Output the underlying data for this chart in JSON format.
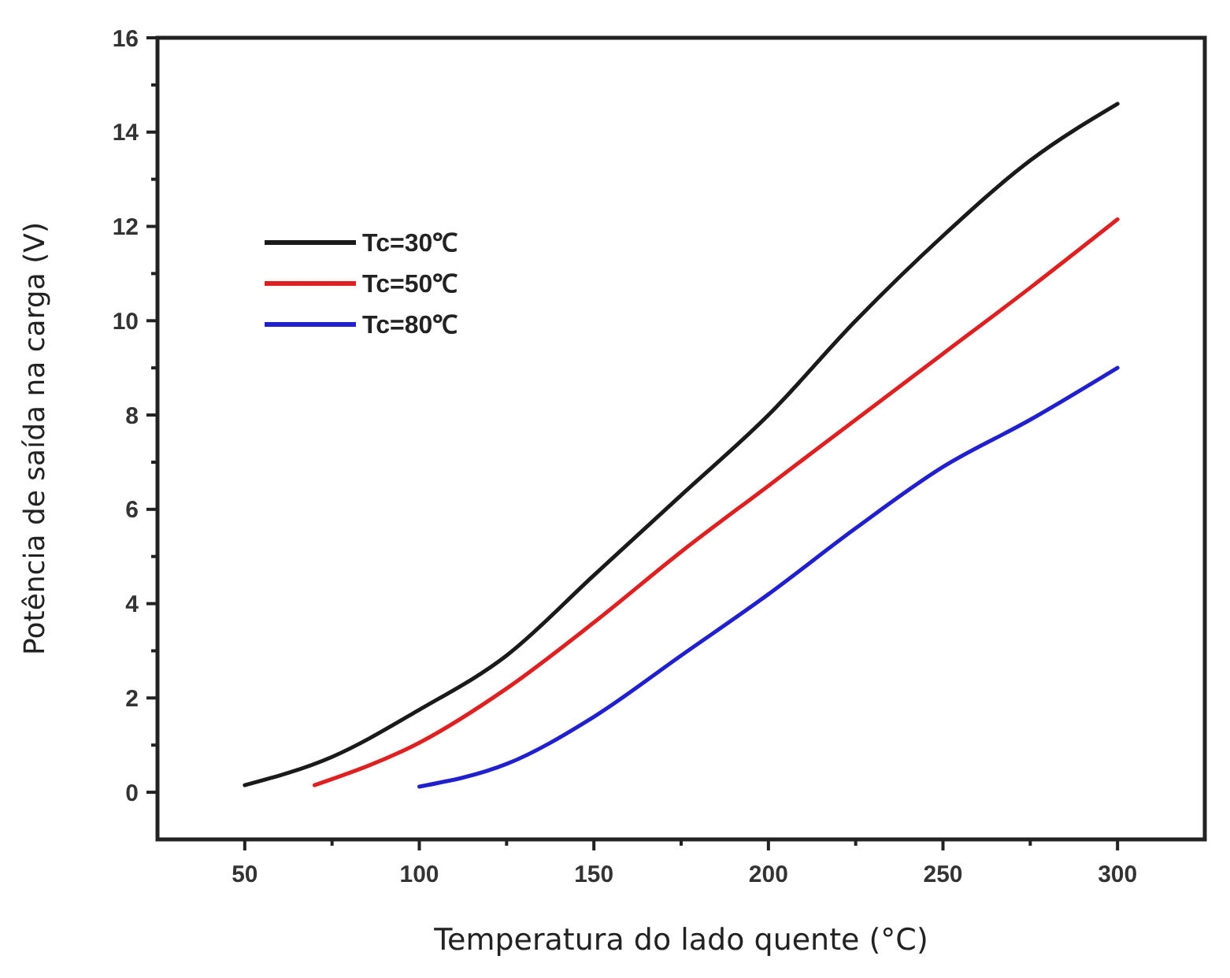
{
  "chart_data": {
    "type": "line",
    "xlabel": "Temperatura do lado quente (°C)",
    "ylabel": "Potência de saída na carga (V)",
    "xlim": [
      25,
      325
    ],
    "ylim": [
      -1,
      16
    ],
    "xticks": [
      50,
      {
        "value": 75,
        "label": null
      },
      100,
      {
        "value": 125,
        "label": null
      },
      150,
      {
        "value": 175,
        "label": null
      },
      200,
      {
        "value": 225,
        "label": null
      },
      250,
      {
        "value": 275,
        "label": null
      },
      300
    ],
    "yticks": [
      0,
      {
        "value": 1,
        "label": null
      },
      2,
      {
        "value": 3,
        "label": null
      },
      4,
      {
        "value": 5,
        "label": null
      },
      6,
      {
        "value": 7,
        "label": null
      },
      8,
      {
        "value": 9,
        "label": null
      },
      10,
      {
        "value": 11,
        "label": null
      },
      12,
      {
        "value": 13,
        "label": null
      },
      14,
      {
        "value": 15,
        "label": null
      },
      16
    ],
    "grid": false,
    "legend": "top left",
    "marker": "none",
    "line_style": "solid",
    "series": [
      {
        "name": "Tc=30℃",
        "color": "#1a1a1a",
        "x": [
          50,
          75,
          100,
          125,
          150,
          175,
          200,
          225,
          250,
          275,
          300
        ],
        "values": [
          0.15,
          0.75,
          1.75,
          2.9,
          4.6,
          6.3,
          8.0,
          10.0,
          11.8,
          13.4,
          14.6
        ]
      },
      {
        "name": "Tc=50℃",
        "color": "#e02020",
        "x": [
          70,
          100,
          125,
          150,
          175,
          200,
          225,
          250,
          275,
          300
        ],
        "values": [
          0.15,
          1.05,
          2.2,
          3.6,
          5.1,
          6.5,
          7.9,
          9.3,
          10.7,
          12.15
        ]
      },
      {
        "name": "Tc=80℃",
        "color": "#2020d0",
        "x": [
          100,
          125,
          150,
          175,
          200,
          225,
          250,
          275,
          300
        ],
        "values": [
          0.12,
          0.6,
          1.6,
          2.9,
          4.2,
          5.6,
          6.9,
          7.9,
          9.0
        ]
      }
    ]
  }
}
